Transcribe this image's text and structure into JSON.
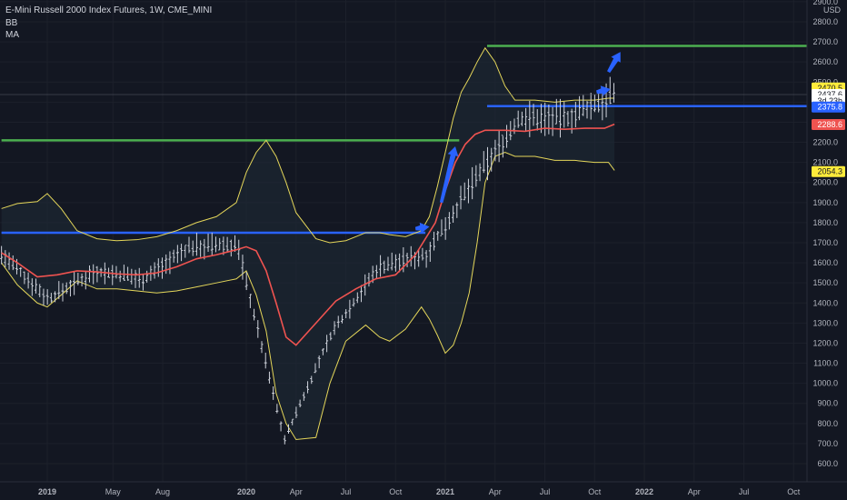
{
  "legend": {
    "title": "E-Mini Russell 2000 Index Futures, 1W, CME_MINI",
    "indicator_1": "BB",
    "indicator_2": "MA"
  },
  "colors": {
    "background": "#131722",
    "bands": "#e4d65a",
    "ma": "#ef5350",
    "support_line": "#2962ff",
    "resistance_line": "#4caf50",
    "arrows": "#2962ff",
    "price_tag_yellow": "#ffeb3b",
    "price_tag_blue": "#2962ff",
    "price_tag_red": "#ef5350",
    "candles": "#cfd3dc"
  },
  "chart_data": {
    "type": "line",
    "title": "E-Mini Russell 2000 Index Futures, 1W, CME_MINI",
    "currency_label": "USD",
    "x_tick_labels": [
      "2019",
      "May",
      "Aug",
      "2020",
      "Apr",
      "Jul",
      "Oct",
      "2021",
      "Apr",
      "Jul",
      "Oct",
      "2022",
      "Apr",
      "Jul",
      "Oct"
    ],
    "y_tick_labels": [
      "2900.0",
      "2800.0",
      "2700.0",
      "2600.0",
      "2500.0",
      "2437.6",
      "2400.0",
      "2300.0",
      "2200.0",
      "2100.0",
      "2000.0",
      "1900.0",
      "1800.0",
      "1700.0",
      "1600.0",
      "1500.0",
      "1400.0",
      "1300.0",
      "1200.0",
      "1100.0",
      "1000.0",
      "900.0",
      "800.0",
      "700.0",
      "600.0"
    ],
    "ylim": [
      560,
      2910
    ],
    "price_tags": [
      {
        "label": "2470.5",
        "value": 2470.5,
        "style": "yellow"
      },
      {
        "label": "2437.6",
        "value": 2437.6,
        "style": "white"
      },
      {
        "label": "3d 23h",
        "value": 2406,
        "style": "white"
      },
      {
        "label": "2375.8",
        "value": 2375.8,
        "style": "blue"
      },
      {
        "label": "2288.6",
        "value": 2288.6,
        "style": "red"
      },
      {
        "label": "2054.3",
        "value": 2054.3,
        "style": "yellow"
      }
    ],
    "horizontal_levels": [
      {
        "name": "support",
        "value": 1750,
        "from": 2018.77,
        "to": 2020.9
      },
      {
        "name": "resistance",
        "value": 2210,
        "from": 2018.77,
        "to": 2021.07
      },
      {
        "name": "support",
        "value": 2380,
        "from": 2021.21,
        "to": 2022.97
      },
      {
        "name": "resistance",
        "value": 2680,
        "from": 2021.21,
        "to": 2022.97
      }
    ],
    "series": [
      {
        "name": "BB",
        "x": [
          2018.77,
          2018.85,
          2018.95,
          2019.0,
          2019.07,
          2019.15,
          2019.25,
          2019.35,
          2019.45,
          2019.55,
          2019.65,
          2019.75,
          2019.85,
          2019.95,
          2020.0,
          2020.05,
          2020.1,
          2020.15,
          2020.2,
          2020.25,
          2020.35,
          2020.42,
          2020.5,
          2020.6,
          2020.67,
          2020.72,
          2020.8,
          2020.88,
          2020.92,
          2020.96,
          2021.0,
          2021.04,
          2021.08,
          2021.12,
          2021.16,
          2021.2,
          2021.25,
          2021.3,
          2021.35,
          2021.45,
          2021.55,
          2021.65,
          2021.75,
          2021.82,
          2021.85
        ],
        "upper": [
          1870,
          1895,
          1905,
          1945,
          1870,
          1760,
          1720,
          1710,
          1715,
          1730,
          1760,
          1800,
          1830,
          1900,
          2050,
          2150,
          2210,
          2130,
          2000,
          1850,
          1720,
          1700,
          1710,
          1750,
          1750,
          1740,
          1730,
          1760,
          1830,
          1980,
          2150,
          2320,
          2450,
          2520,
          2600,
          2670,
          2600,
          2480,
          2410,
          2410,
          2400,
          2410,
          2410,
          2420,
          2420
        ],
        "lower": [
          1600,
          1490,
          1400,
          1380,
          1440,
          1510,
          1470,
          1470,
          1460,
          1450,
          1460,
          1480,
          1500,
          1520,
          1560,
          1440,
          1260,
          950,
          800,
          720,
          730,
          1000,
          1210,
          1290,
          1230,
          1210,
          1270,
          1380,
          1320,
          1240,
          1150,
          1190,
          1300,
          1450,
          1700,
          2000,
          2130,
          2150,
          2130,
          2130,
          2110,
          2110,
          2100,
          2100,
          2060
        ]
      },
      {
        "name": "MA",
        "x": [
          2018.77,
          2018.85,
          2018.95,
          2019.05,
          2019.15,
          2019.25,
          2019.35,
          2019.45,
          2019.55,
          2019.65,
          2019.75,
          2019.85,
          2019.95,
          2020.0,
          2020.05,
          2020.1,
          2020.15,
          2020.2,
          2020.25,
          2020.35,
          2020.45,
          2020.55,
          2020.65,
          2020.75,
          2020.85,
          2020.95,
          2021.0,
          2021.05,
          2021.1,
          2021.15,
          2021.2,
          2021.3,
          2021.4,
          2021.5,
          2021.6,
          2021.7,
          2021.8,
          2021.85
        ],
        "values": [
          1650,
          1600,
          1530,
          1540,
          1560,
          1555,
          1545,
          1540,
          1550,
          1580,
          1620,
          1640,
          1665,
          1680,
          1660,
          1560,
          1400,
          1230,
          1190,
          1300,
          1410,
          1470,
          1520,
          1540,
          1640,
          1800,
          1960,
          2100,
          2190,
          2240,
          2260,
          2260,
          2255,
          2270,
          2265,
          2270,
          2270,
          2290
        ]
      },
      {
        "name": "price",
        "x_range": [
          2018.77,
          2021.85
        ],
        "approx_values": [
          1640,
          1420,
          1560,
          1520,
          1680,
          1690,
          720,
          1250,
          1580,
          1640,
          2000,
          2320,
          2320,
          2437
        ]
      }
    ],
    "annotations": [
      {
        "type": "arrow",
        "from": [
          2020.85,
          1770
        ],
        "to": [
          2020.92,
          1780
        ]
      },
      {
        "type": "arrow",
        "from": [
          2020.98,
          1900
        ],
        "to": [
          2021.05,
          2180
        ]
      },
      {
        "type": "arrow",
        "from": [
          2021.76,
          2450
        ],
        "to": [
          2021.83,
          2465
        ]
      },
      {
        "type": "arrow",
        "from": [
          2021.82,
          2550
        ],
        "to": [
          2021.88,
          2650
        ]
      }
    ],
    "grid": true,
    "legend_position": "top-left"
  }
}
